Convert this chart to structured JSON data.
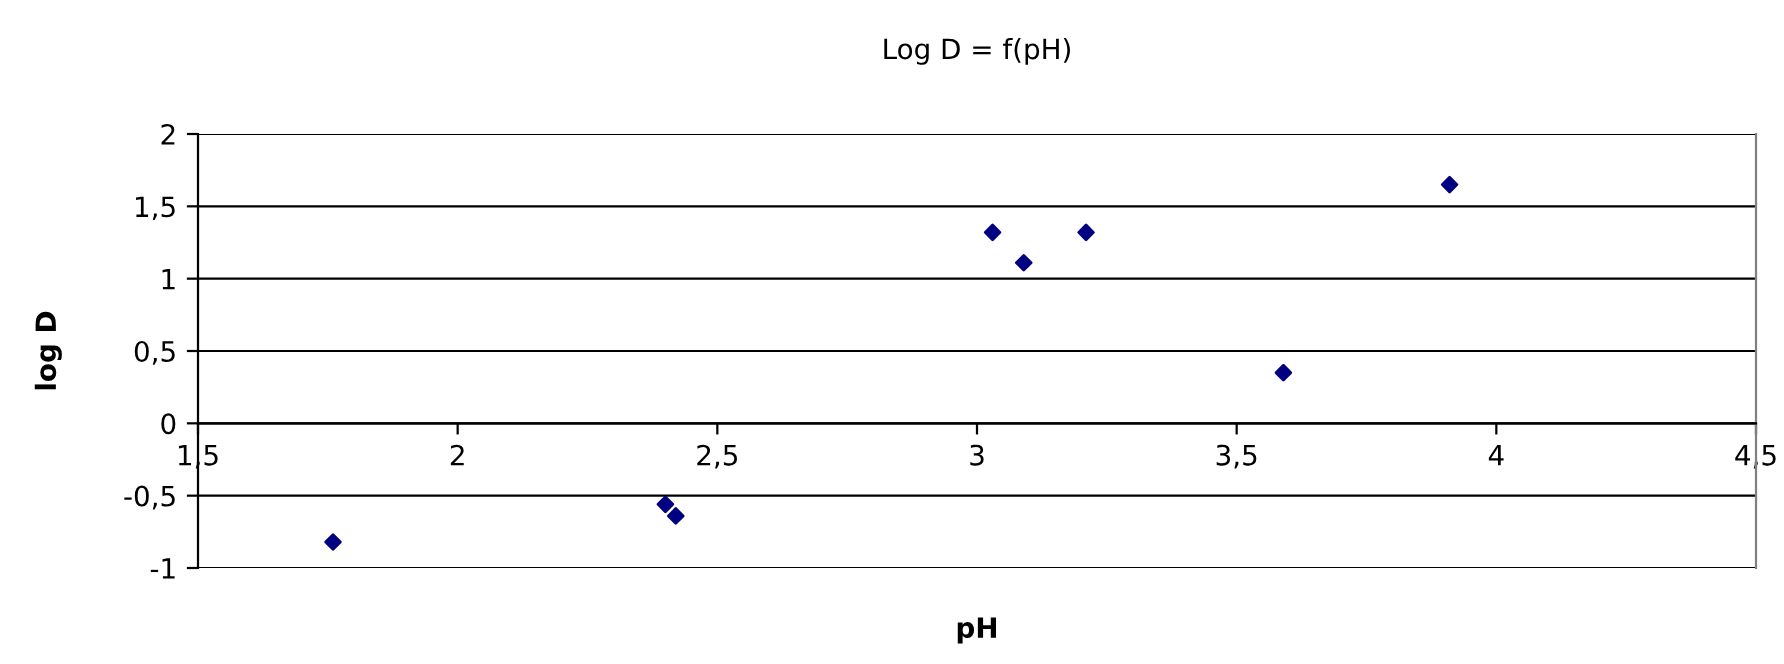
{
  "chart_data": {
    "type": "scatter",
    "title": "Log D = f(pH)",
    "xlabel": "pH",
    "ylabel": "log D",
    "x": [
      1.76,
      2.4,
      2.42,
      3.03,
      3.09,
      3.21,
      3.59,
      3.91
    ],
    "series": [
      {
        "color": "#000080",
        "values": [
          -0.82,
          -0.56,
          -0.64,
          1.32,
          1.11,
          1.32,
          0.35,
          1.65
        ]
      }
    ],
    "xlim": [
      1.5,
      4.5
    ],
    "xticks": [
      {
        "value": 1.5,
        "label": "1,5"
      },
      2,
      {
        "value": 2.5,
        "label": "2,5"
      },
      3,
      {
        "value": 3.5,
        "label": "3,5"
      },
      4,
      {
        "value": 4.5,
        "label": "4,5"
      }
    ],
    "ylim": [
      -1,
      2
    ],
    "yticks": [
      {
        "value": -1,
        "label": "-1"
      },
      {
        "value": -0.5,
        "label": "-0,5"
      },
      0,
      {
        "value": 0.5,
        "label": "0,5"
      },
      1,
      {
        "value": 1.5,
        "label": "1,5"
      },
      2
    ],
    "grid": "y",
    "marker": "diamond",
    "legend": false
  }
}
